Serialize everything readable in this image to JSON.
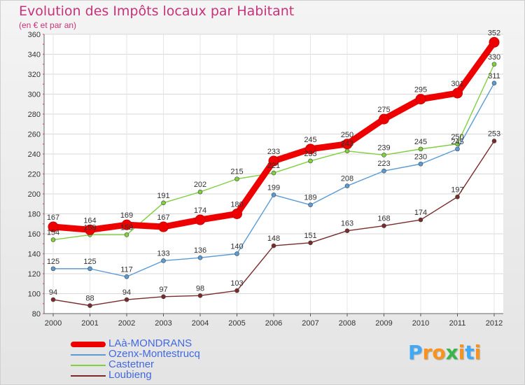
{
  "chart_data": {
    "type": "line",
    "title": "Evolution des Impôts locaux par Habitant",
    "subtitle": "(en € et par an)",
    "categories": [
      "2000",
      "2001",
      "2002",
      "2003",
      "2004",
      "2005",
      "2006",
      "2007",
      "2008",
      "2009",
      "2010",
      "2011",
      "2012"
    ],
    "ylim": [
      80,
      360
    ],
    "yticks": [
      80,
      100,
      120,
      140,
      160,
      180,
      200,
      220,
      240,
      260,
      280,
      300,
      320,
      340,
      360
    ],
    "grid": true,
    "series": [
      {
        "name": "LAà-MONDRANS",
        "color": "#ee0000",
        "values": [
          167,
          164,
          169,
          167,
          174,
          180,
          233,
          245,
          250,
          275,
          295,
          301,
          352
        ]
      },
      {
        "name": "Ozenx-Montestrucq",
        "color": "#5b9bd5",
        "values": [
          125,
          125,
          117,
          133,
          136,
          140,
          199,
          189,
          208,
          223,
          230,
          245,
          311
        ]
      },
      {
        "name": "Castetner",
        "color": "#7fcf3f",
        "values": [
          154,
          159,
          159,
          191,
          202,
          215,
          221,
          233,
          243,
          239,
          245,
          250,
          330
        ]
      },
      {
        "name": "Loubieng",
        "color": "#7a2a2a",
        "values": [
          94,
          88,
          94,
          97,
          98,
          103,
          148,
          151,
          163,
          168,
          174,
          197,
          253
        ]
      }
    ]
  },
  "brand": {
    "letters": [
      "P",
      "r",
      "o",
      "x",
      "i",
      "t",
      "i"
    ],
    "colors": [
      "#3fa9f5",
      "#f7931e",
      "#f7931e",
      "#39b54a",
      "#f7931e",
      "#3fa9f5",
      "#f7931e"
    ]
  }
}
